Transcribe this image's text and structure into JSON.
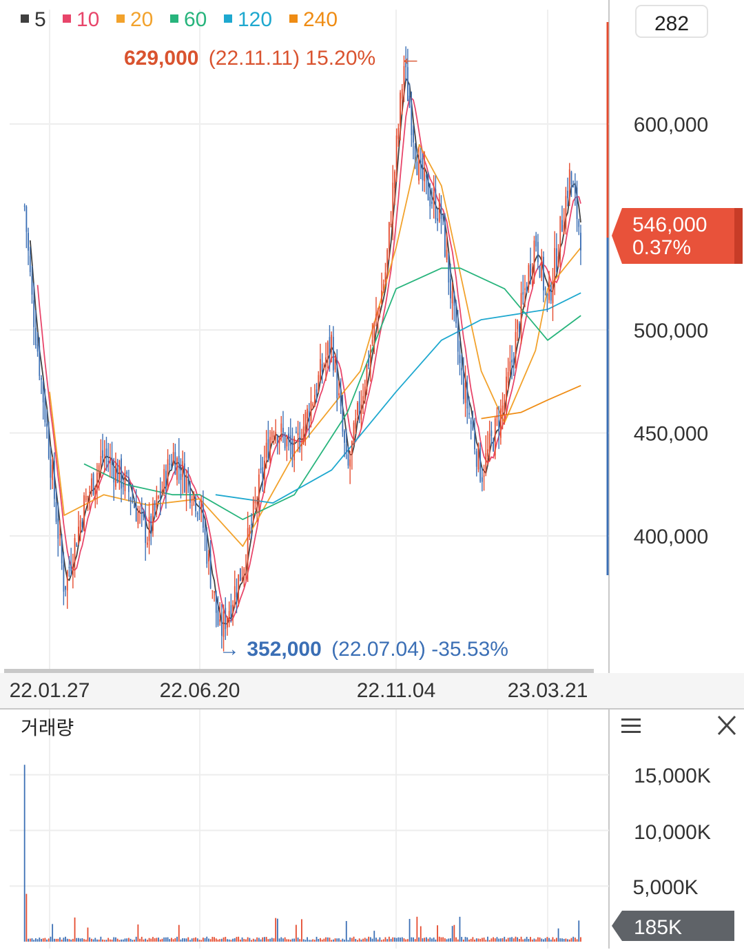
{
  "chart_data": {
    "type": "candlestick",
    "x_ticks": [
      "22.01.27",
      "22.06.20",
      "22.11.04",
      "23.03.21"
    ],
    "y_ticks": [
      "600,000",
      "500,000",
      "450,000",
      "400,000"
    ],
    "ylim": [
      352000,
      629000
    ],
    "ma_legend": [
      {
        "label": "5",
        "color": "#404040"
      },
      {
        "label": "10",
        "color": "#e8456a"
      },
      {
        "label": "20",
        "color": "#f2a22c"
      },
      {
        "label": "60",
        "color": "#27b47c"
      },
      {
        "label": "120",
        "color": "#1ea8cf"
      },
      {
        "label": "240",
        "color": "#ef8c14"
      }
    ],
    "top_counter": "282",
    "high": {
      "value": "629,000",
      "detail": "(22.11.11) 15.20%",
      "arrow": "←"
    },
    "low": {
      "value": "352,000",
      "detail": "(22.07.04) -35.53%",
      "arrow": "→"
    },
    "current": {
      "price": "546,000",
      "change": "0.37%"
    },
    "price_path": [
      [
        "22.01.03",
        560000
      ],
      [
        "22.01.10",
        515000
      ],
      [
        "22.01.27",
        440000
      ],
      [
        "22.02.10",
        375000
      ],
      [
        "22.03.01",
        415000
      ],
      [
        "22.03.20",
        440000
      ],
      [
        "22.04.10",
        425000
      ],
      [
        "22.05.01",
        400000
      ],
      [
        "22.05.25",
        440000
      ],
      [
        "22.06.20",
        415000
      ],
      [
        "22.07.04",
        352000
      ],
      [
        "22.07.20",
        385000
      ],
      [
        "22.08.10",
        455000
      ],
      [
        "22.08.25",
        440000
      ],
      [
        "22.09.20",
        495000
      ],
      [
        "22.10.01",
        430000
      ],
      [
        "22.10.10",
        465000
      ],
      [
        "22.10.28",
        530000
      ],
      [
        "22.11.11",
        629000
      ],
      [
        "22.11.25",
        575000
      ],
      [
        "22.12.15",
        555000
      ],
      [
        "23.01.01",
        480000
      ],
      [
        "23.01.20",
        430000
      ],
      [
        "23.02.10",
        465000
      ],
      [
        "23.02.25",
        510000
      ],
      [
        "23.03.10",
        545000
      ],
      [
        "23.03.21",
        512000
      ],
      [
        "23.04.10",
        575000
      ],
      [
        "23.04.20",
        546000
      ]
    ],
    "ma_paths": {
      "20": [
        [
          "22.01.27",
          470000
        ],
        [
          "22.02.10",
          410000
        ],
        [
          "22.03.20",
          420000
        ],
        [
          "22.05.01",
          415000
        ],
        [
          "22.06.20",
          418000
        ],
        [
          "22.07.20",
          395000
        ],
        [
          "22.08.25",
          440000
        ],
        [
          "22.10.10",
          480000
        ],
        [
          "22.11.04",
          540000
        ],
        [
          "22.11.25",
          590000
        ],
        [
          "22.12.15",
          570000
        ],
        [
          "23.01.20",
          480000
        ],
        [
          "23.02.10",
          455000
        ],
        [
          "23.03.10",
          490000
        ],
        [
          "23.03.21",
          520000
        ],
        [
          "23.04.20",
          540000
        ]
      ],
      "60": [
        [
          "22.03.01",
          435000
        ],
        [
          "22.04.10",
          425000
        ],
        [
          "22.05.25",
          420000
        ],
        [
          "22.06.20",
          420000
        ],
        [
          "22.07.20",
          408000
        ],
        [
          "22.08.25",
          420000
        ],
        [
          "22.10.01",
          460000
        ],
        [
          "22.11.04",
          520000
        ],
        [
          "22.12.15",
          530000
        ],
        [
          "23.01.01",
          530000
        ],
        [
          "23.02.10",
          520000
        ],
        [
          "23.03.21",
          495000
        ],
        [
          "23.04.20",
          507000
        ]
      ],
      "120": [
        [
          "22.07.01",
          420000
        ],
        [
          "22.08.10",
          416000
        ],
        [
          "22.09.20",
          432000
        ],
        [
          "22.11.04",
          470000
        ],
        [
          "22.12.15",
          495000
        ],
        [
          "23.01.20",
          505000
        ],
        [
          "23.03.21",
          510000
        ],
        [
          "23.04.20",
          518000
        ]
      ],
      "240": [
        [
          "23.01.20",
          457000
        ],
        [
          "23.02.25",
          460000
        ],
        [
          "23.03.21",
          466000
        ],
        [
          "23.04.20",
          473000
        ]
      ]
    },
    "volume": {
      "panel_label": "거래량",
      "y_ticks": [
        "15,000K",
        "10,000K",
        "5,000K"
      ],
      "ylim": [
        0,
        15000
      ],
      "current": "185K"
    }
  }
}
